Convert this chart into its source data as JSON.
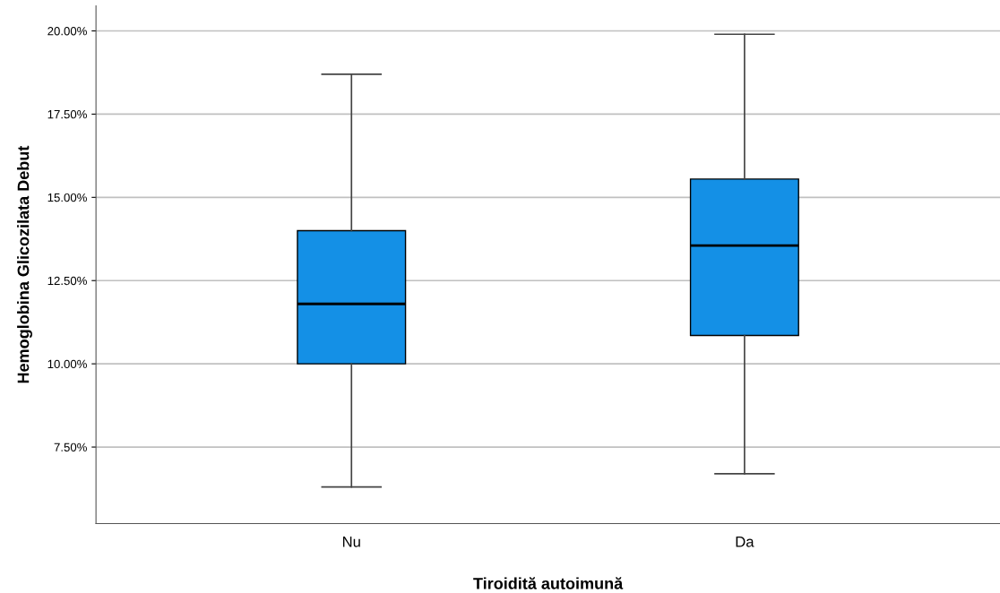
{
  "chart_data": {
    "type": "box",
    "xlabel": "Tiroidită autoimună",
    "ylabel": "Hemoglobina Glicozilata Debut",
    "categories": [
      "Nu",
      "Da"
    ],
    "boxes": [
      {
        "low": 6.3,
        "q1": 10.0,
        "median": 11.8,
        "q3": 14.0,
        "high": 18.7
      },
      {
        "low": 6.7,
        "q1": 10.85,
        "median": 13.55,
        "q3": 15.55,
        "high": 19.9
      }
    ],
    "color": "#1490e6",
    "ylim": [
      5.2,
      20.75
    ],
    "yticks": [
      {
        "value": 7.5,
        "label": "7.50%"
      },
      {
        "value": 10,
        "label": "10.00%"
      },
      {
        "value": 12.5,
        "label": "12.50%"
      },
      {
        "value": 15,
        "label": "15.00%"
      },
      {
        "value": 17.5,
        "label": "17.50%"
      },
      {
        "value": 20,
        "label": "20.00%"
      }
    ],
    "grid": "y"
  }
}
